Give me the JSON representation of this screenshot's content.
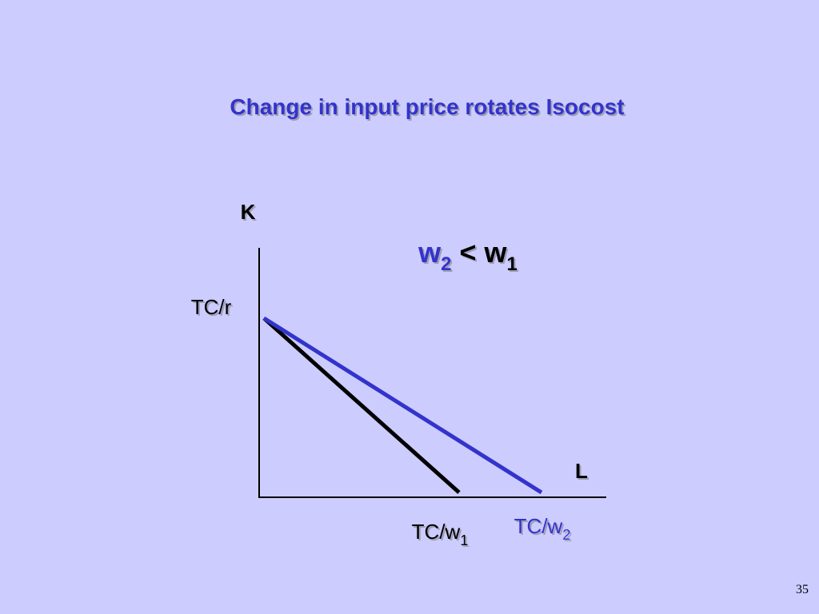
{
  "title": "Change in input price rotates Isocost",
  "labels": {
    "k": "K",
    "l": "L",
    "tc_r": "TC/r",
    "tc_w1": {
      "text": "TC/w",
      "sub": "1"
    },
    "tc_w2": {
      "text": "TC/w",
      "sub": "2"
    }
  },
  "annotation": {
    "w2": {
      "text": "w",
      "sub": "2"
    },
    "op": "<",
    "w1": {
      "text": "w",
      "sub": "1"
    }
  },
  "page_number": "35"
}
